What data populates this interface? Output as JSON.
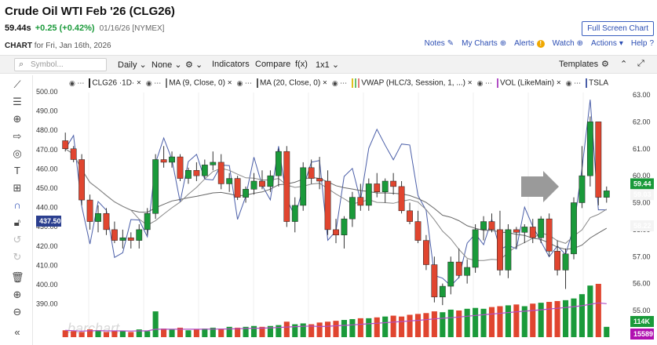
{
  "header": {
    "title": "Crude Oil WTI Feb '26 (CLG26)",
    "last": "59.44s",
    "change": "+0.25 (+0.42%)",
    "date": "01/16/26 [NYMEX]",
    "chart_label": "CHART",
    "chart_date": "for Fri, Jan 16th, 2026",
    "fullscreen": "Full Screen Chart"
  },
  "toplinks": {
    "notes": "Notes",
    "mycharts": "My Charts",
    "alerts": "Alerts",
    "watch": "Watch",
    "actions": "Actions",
    "help": "Help"
  },
  "toolbar": {
    "symbol_placeholder": "Symbol...",
    "period": "Daily",
    "compare_none": "None",
    "settings_glyph": "⚙",
    "indicators": "Indicators",
    "compare": "Compare",
    "fx": "f(x)",
    "ratio": "1x1",
    "templates": "Templates"
  },
  "legend": {
    "symbol": "CLG26 ·1D·",
    "ma9": "MA (9, Close, 0)",
    "ma20": "MA (20, Close, 0)",
    "vwap": "VWAP (HLC/3, Session, 1, ...)",
    "vol": "VOL (LikeMain)",
    "tsla": "TSLA"
  },
  "colors": {
    "up": "#1a9a3a",
    "down": "#e0452f",
    "ma": "#777777",
    "tsla": "#4a5ea8",
    "vwap": "#c040c0",
    "volume_ma": "#b14fc5"
  },
  "chart_data": {
    "type": "candlestick",
    "left_axis_ticks": [
      "500.00",
      "490.00",
      "480.00",
      "470.00",
      "460.00",
      "450.00",
      "440.00",
      "430.00",
      "420.00",
      "410.00",
      "400.00",
      "390.00"
    ],
    "right_axis_ticks": [
      "63.00",
      "62.00",
      "61.00",
      "60.00",
      "59.00",
      "58.00",
      "57.00",
      "56.00",
      "55.00"
    ],
    "left_tag": "437.50",
    "right_tags": {
      "last": "59.44",
      "ma9": "59.03",
      "ma20": "58.22",
      "volume": "114K",
      "volume_ma": "15589"
    },
    "watermark": "barchart",
    "ohlc": [
      [
        61.3,
        61.6,
        60.9,
        61.0
      ],
      [
        61.0,
        61.1,
        60.5,
        60.6
      ],
      [
        60.6,
        60.8,
        58.9,
        59.1
      ],
      [
        59.1,
        59.3,
        58.0,
        58.3
      ],
      [
        58.3,
        58.9,
        57.9,
        58.6
      ],
      [
        58.6,
        58.8,
        57.8,
        58.0
      ],
      [
        58.0,
        58.3,
        57.5,
        57.6
      ],
      [
        57.6,
        58.0,
        57.3,
        57.7
      ],
      [
        57.7,
        57.9,
        57.3,
        57.6
      ],
      [
        57.6,
        58.2,
        57.3,
        58.0
      ],
      [
        58.0,
        58.8,
        57.8,
        58.6
      ],
      [
        58.6,
        60.8,
        58.4,
        60.6
      ],
      [
        60.6,
        61.1,
        60.3,
        60.5
      ],
      [
        60.5,
        60.9,
        60.3,
        60.7
      ],
      [
        60.7,
        60.8,
        59.8,
        59.9
      ],
      [
        59.9,
        60.3,
        59.7,
        60.2
      ],
      [
        60.2,
        60.5,
        59.8,
        60.0
      ],
      [
        60.0,
        60.6,
        59.9,
        60.4
      ],
      [
        60.4,
        60.9,
        60.2,
        60.5
      ],
      [
        60.5,
        60.8,
        59.5,
        59.7
      ],
      [
        59.7,
        60.1,
        59.4,
        59.9
      ],
      [
        59.9,
        60.0,
        59.1,
        59.2
      ],
      [
        59.2,
        59.6,
        59.0,
        59.5
      ],
      [
        59.5,
        60.1,
        59.3,
        59.8
      ],
      [
        59.8,
        60.2,
        59.5,
        59.6
      ],
      [
        59.6,
        60.2,
        59.4,
        60.0
      ],
      [
        60.0,
        61.0,
        59.6,
        60.9
      ],
      [
        60.9,
        61.1,
        58.1,
        58.3
      ],
      [
        58.3,
        59.2,
        57.9,
        58.9
      ],
      [
        58.9,
        60.5,
        58.7,
        60.3
      ],
      [
        60.3,
        60.6,
        59.7,
        59.9
      ],
      [
        59.9,
        60.7,
        59.5,
        59.8
      ],
      [
        59.8,
        60.2,
        57.8,
        58.0
      ],
      [
        58.0,
        58.4,
        57.5,
        57.8
      ],
      [
        57.8,
        58.5,
        57.3,
        58.4
      ],
      [
        58.4,
        59.4,
        58.1,
        59.2
      ],
      [
        59.2,
        59.7,
        58.7,
        58.9
      ],
      [
        58.9,
        59.9,
        58.7,
        59.7
      ],
      [
        59.7,
        60.1,
        59.2,
        59.4
      ],
      [
        59.4,
        59.9,
        59.0,
        59.8
      ],
      [
        59.8,
        60.1,
        59.3,
        59.6
      ],
      [
        59.6,
        59.8,
        58.6,
        58.7
      ],
      [
        58.7,
        59.0,
        58.2,
        58.3
      ],
      [
        58.3,
        58.7,
        57.5,
        57.6
      ],
      [
        57.6,
        57.8,
        56.5,
        56.7
      ],
      [
        56.7,
        57.0,
        55.3,
        55.5
      ],
      [
        55.5,
        56.0,
        55.2,
        55.9
      ],
      [
        55.9,
        57.0,
        55.6,
        56.8
      ],
      [
        56.8,
        57.3,
        56.2,
        56.3
      ],
      [
        56.3,
        56.9,
        56.0,
        56.6
      ],
      [
        56.6,
        58.2,
        56.4,
        58.0
      ],
      [
        58.0,
        58.5,
        57.6,
        58.3
      ],
      [
        58.3,
        58.6,
        57.9,
        58.0
      ],
      [
        58.0,
        58.7,
        56.3,
        56.5
      ],
      [
        56.5,
        58.2,
        56.2,
        58.0
      ],
      [
        58.0,
        58.1,
        57.3,
        57.9
      ],
      [
        57.9,
        58.2,
        57.5,
        58.1
      ],
      [
        58.1,
        58.4,
        57.5,
        57.7
      ],
      [
        57.7,
        58.5,
        57.5,
        58.4
      ],
      [
        58.4,
        58.6,
        57.0,
        57.2
      ],
      [
        57.2,
        57.6,
        56.3,
        56.5
      ],
      [
        56.5,
        57.3,
        55.8,
        57.1
      ],
      [
        57.1,
        59.2,
        56.9,
        59.0
      ],
      [
        59.0,
        61.1,
        58.8,
        60.0
      ],
      [
        60.0,
        62.2,
        59.6,
        62.0
      ],
      [
        62.0,
        62.0,
        58.9,
        59.2
      ],
      [
        59.2,
        59.6,
        59.0,
        59.44
      ]
    ],
    "volume_tags_note": "",
    "volume": [
      8,
      7,
      6,
      9,
      8,
      6,
      7,
      7,
      6,
      9,
      7,
      30,
      10,
      9,
      11,
      8,
      9,
      10,
      11,
      10,
      12,
      11,
      12,
      13,
      12,
      13,
      14,
      18,
      15,
      16,
      15,
      17,
      18,
      19,
      20,
      21,
      22,
      22,
      23,
      24,
      25,
      24,
      26,
      27,
      28,
      30,
      29,
      32,
      31,
      33,
      34,
      33,
      35,
      36,
      37,
      38,
      36,
      39,
      40,
      41,
      42,
      43,
      45,
      50,
      60,
      62,
      12
    ]
  }
}
